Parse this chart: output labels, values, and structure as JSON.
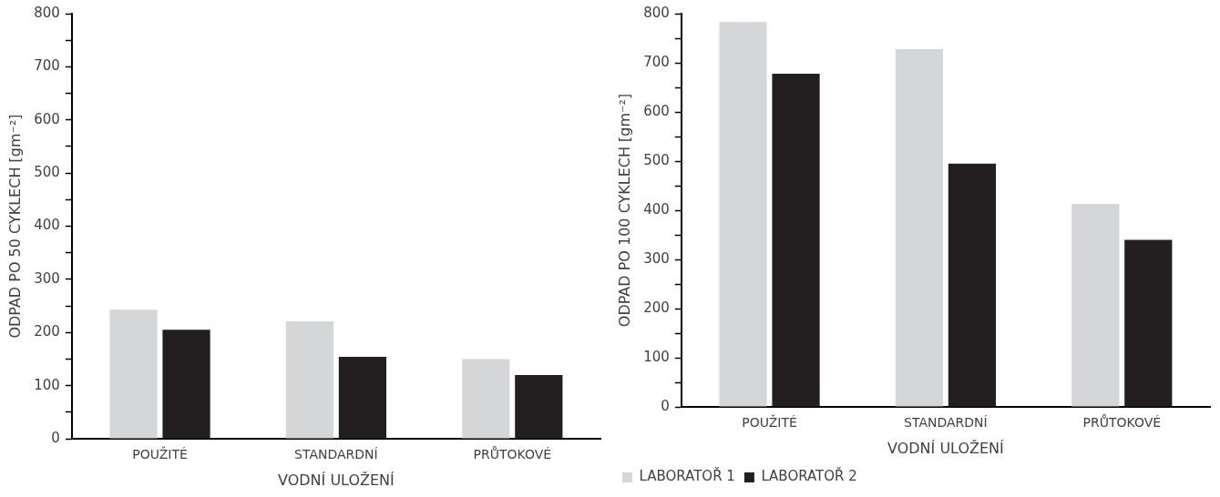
{
  "chart_data": [
    {
      "type": "bar",
      "categories": [
        "POUŽITÉ",
        "STANDARDNÍ",
        "PRŮTOKOVÉ"
      ],
      "xlabel": "VODNÍ ULOŽENÍ",
      "ylabel": "ODPAD PO 50 CYKLECH [gm⁻²]",
      "ylim": [
        0,
        800
      ],
      "yticks": [
        0,
        {
          "value": 50,
          "label": null
        },
        100,
        {
          "value": 150,
          "label": null
        },
        200,
        {
          "value": 250,
          "label": null
        },
        300,
        {
          "value": 350,
          "label": null
        },
        400,
        {
          "value": 450,
          "label": null
        },
        500,
        {
          "value": 550,
          "label": null
        },
        600,
        {
          "value": 650,
          "label": null
        },
        700,
        {
          "value": 750,
          "label": null
        },
        800
      ],
      "grid": false,
      "legend": false,
      "series": [
        {
          "color": "#d5d6d8",
          "values": [
            243,
            221,
            150
          ]
        },
        {
          "color": "#231f20",
          "values": [
            205,
            154,
            120
          ]
        }
      ]
    },
    {
      "type": "bar",
      "categories": [
        "POUŽITÉ",
        "STANDARDNÍ",
        "PRŮTOKOVÉ"
      ],
      "xlabel": "VODNÍ ULOŽENÍ",
      "ylabel": "ODPAD PO 100 CYKLECH [gm⁻²]",
      "ylim": [
        0,
        800
      ],
      "yticks": [
        0,
        {
          "value": 50,
          "label": null
        },
        100,
        {
          "value": 150,
          "label": null
        },
        200,
        {
          "value": 250,
          "label": null
        },
        300,
        {
          "value": 350,
          "label": null
        },
        400,
        {
          "value": 450,
          "label": null
        },
        500,
        {
          "value": 550,
          "label": null
        },
        600,
        {
          "value": 650,
          "label": null
        },
        700,
        {
          "value": 750,
          "label": null
        },
        800
      ],
      "grid": false,
      "legend": "bottom left",
      "series": [
        {
          "name": "LABORATOŘ 1",
          "color": "#d5d6d8",
          "values": [
            783,
            728,
            413
          ]
        },
        {
          "name": "LABORATOŘ 2",
          "color": "#231f20",
          "values": [
            678,
            495,
            340
          ]
        }
      ]
    }
  ]
}
